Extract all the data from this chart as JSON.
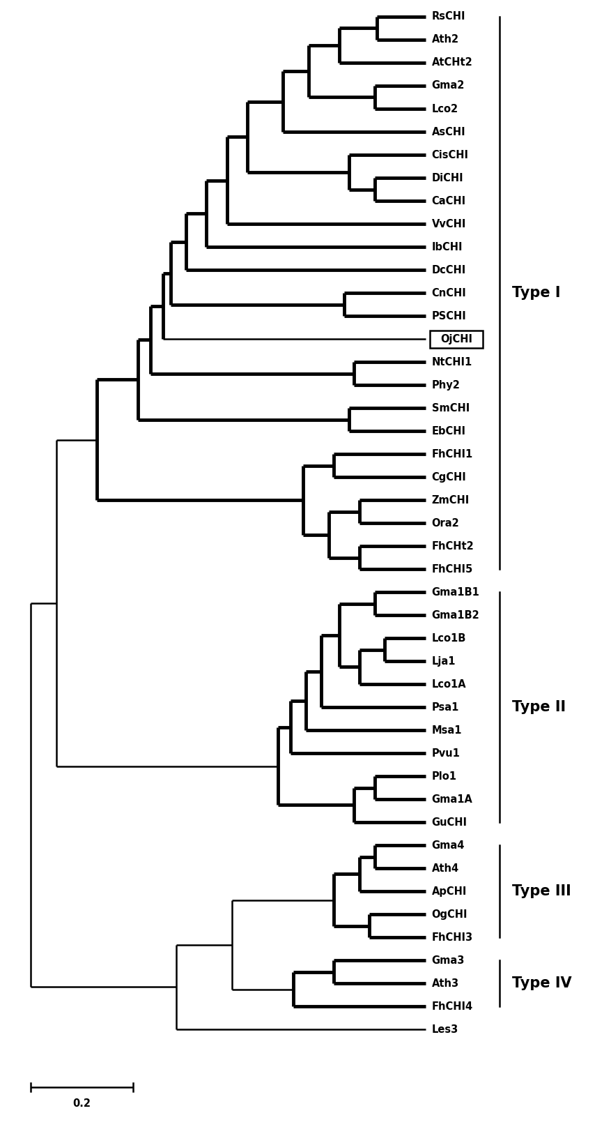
{
  "taxa": [
    "RsCHI",
    "Ath2",
    "AtCHt2",
    "Gma2",
    "Lco2",
    "AsCHI",
    "CisCHI",
    "DiCHI",
    "CaCHI",
    "VvCHI",
    "IbCHI",
    "DcCHI",
    "CnCHI",
    "PSCHI",
    "OjCHI",
    "NtCHI1",
    "Phy2",
    "SmCHI",
    "EbCHI",
    "FhCHI1",
    "CgCHI",
    "ZmCHI",
    "Ora2",
    "FhCHt2",
    "FhCHI5",
    "Gma1B1",
    "Gma1B2",
    "Lco1B",
    "Lja1",
    "Lco1A",
    "Psa1",
    "Msa1",
    "Pvu1",
    "Plo1",
    "Gma1A",
    "GuCHI",
    "Gma4",
    "Ath4",
    "ApCHI",
    "OgCHI",
    "FhCHI3",
    "Gma3",
    "Ath3",
    "FhCHI4",
    "Les3"
  ],
  "figure_width": 8.78,
  "figure_height": 16.29,
  "background_color": "#ffffff",
  "font_size": 10.5,
  "label_font_size": 15,
  "lw_thin": 1.8,
  "lw_bold": 3.5
}
